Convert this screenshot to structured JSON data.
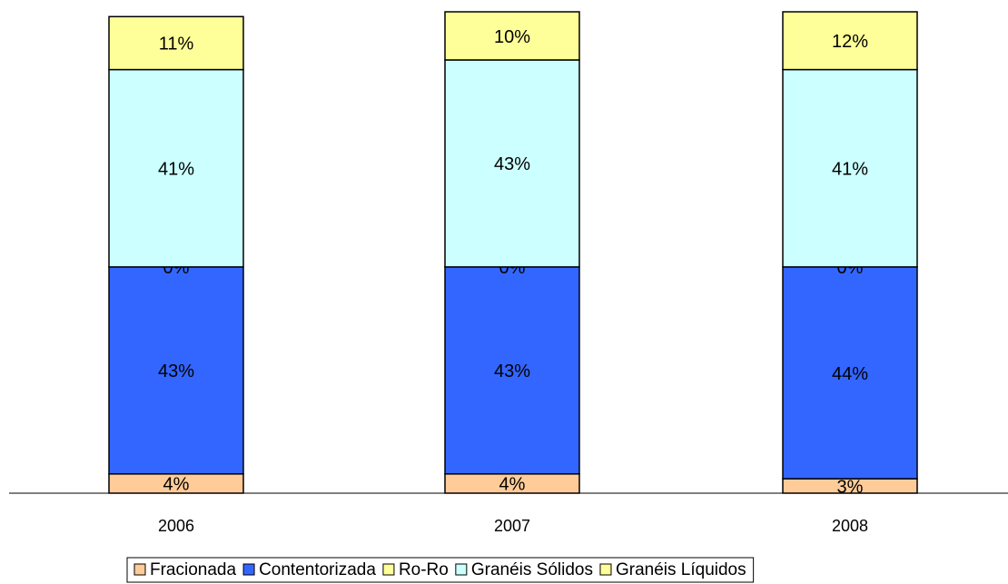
{
  "chart_data": {
    "type": "stacked_bar",
    "categories": [
      "2006",
      "2007",
      "2008"
    ],
    "ylim": [
      0,
      100
    ],
    "legend": "bottom",
    "series": [
      {
        "name": "Fracionada",
        "color": "#FFCC99",
        "values": [
          4,
          4,
          3
        ],
        "value_labels": [
          "4%",
          "4%",
          "3%"
        ]
      },
      {
        "name": "Contentorizada",
        "color": "#3366FF",
        "values": [
          43,
          43,
          44
        ],
        "value_labels": [
          "43%",
          "43%",
          "44%"
        ]
      },
      {
        "name": "Ro-Ro",
        "color": "#FFFF99",
        "values": [
          0,
          0,
          0
        ],
        "value_labels": [
          "0%",
          "0%",
          "0%"
        ]
      },
      {
        "name": "Granéis Sólidos",
        "color": "#CCFFFF",
        "values": [
          41,
          43,
          41
        ],
        "value_labels": [
          "41%",
          "43%",
          "41%"
        ]
      },
      {
        "name": "Granéis Líquidos",
        "color": "#FFFF99",
        "values": [
          11,
          10,
          12
        ],
        "value_labels": [
          "11%",
          "10%",
          "12%"
        ]
      }
    ]
  }
}
